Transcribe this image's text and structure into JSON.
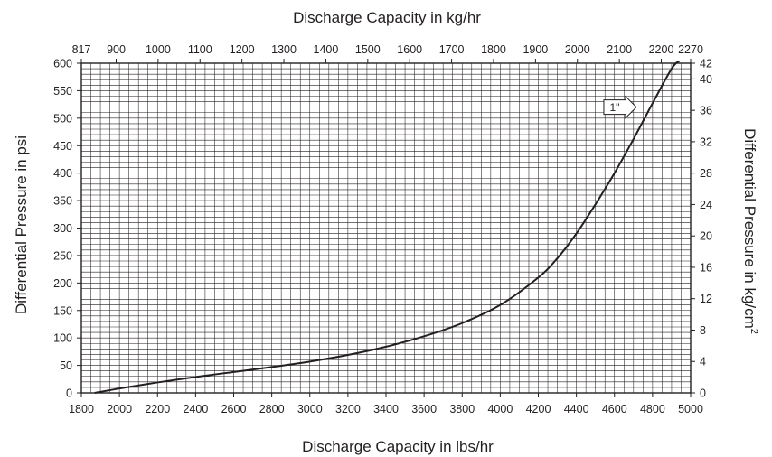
{
  "chart_data": {
    "type": "line",
    "title": "",
    "xlabel": "Discharge Capacity in lbs/hr",
    "ylabel": "Differential Pressure in psi",
    "x2label": "Discharge Capacity in kg/hr",
    "y2label_main": "Differential Pressure in kg/cm",
    "y2label_sup": "2",
    "xlim": [
      1800,
      5000
    ],
    "ylim": [
      0,
      600
    ],
    "x2lim": [
      817,
      2270
    ],
    "y2lim": [
      0,
      42
    ],
    "grid": true,
    "x_ticks": [
      "1800",
      "2000",
      "2200",
      "2400",
      "2600",
      "2800",
      "3000",
      "3200",
      "3400",
      "3600",
      "3800",
      "4000",
      "4200",
      "4400",
      "4600",
      "4800",
      "5000"
    ],
    "y_ticks": [
      "0",
      "50",
      "100",
      "150",
      "200",
      "250",
      "300",
      "350",
      "400",
      "450",
      "500",
      "550",
      "600"
    ],
    "x2_tick_values": [
      817,
      900,
      1000,
      1100,
      1200,
      1300,
      1400,
      1500,
      1600,
      1700,
      1800,
      1900,
      2000,
      2100,
      2200,
      2270
    ],
    "x2_ticks": [
      "817",
      "900",
      "1000",
      "1100",
      "1200",
      "1300",
      "1400",
      "1500",
      "1600",
      "1700",
      "1800",
      "1900",
      "2000",
      "2100",
      "2200",
      "2270"
    ],
    "y2_tick_values": [
      0,
      4,
      8,
      12,
      16,
      20,
      24,
      28,
      32,
      36,
      40,
      42
    ],
    "y2_ticks": [
      "0",
      "4",
      "8",
      "12",
      "16",
      "20",
      "24",
      "28",
      "32",
      "36",
      "40",
      "42"
    ],
    "series": [
      {
        "name": "1\"",
        "x": [
          1870,
          2000,
          2200,
          2400,
          2600,
          2800,
          3000,
          3200,
          3400,
          3600,
          3800,
          4000,
          4200,
          4300,
          4400,
          4500,
          4600,
          4700,
          4800,
          4900,
          4940
        ],
        "y": [
          0,
          8,
          19,
          29,
          38,
          47,
          57,
          69,
          84,
          103,
          127,
          160,
          210,
          245,
          290,
          343,
          400,
          462,
          527,
          590,
          604
        ]
      }
    ],
    "annotations": [
      {
        "text": "1\"",
        "x": 4620,
        "y": 520
      }
    ]
  }
}
